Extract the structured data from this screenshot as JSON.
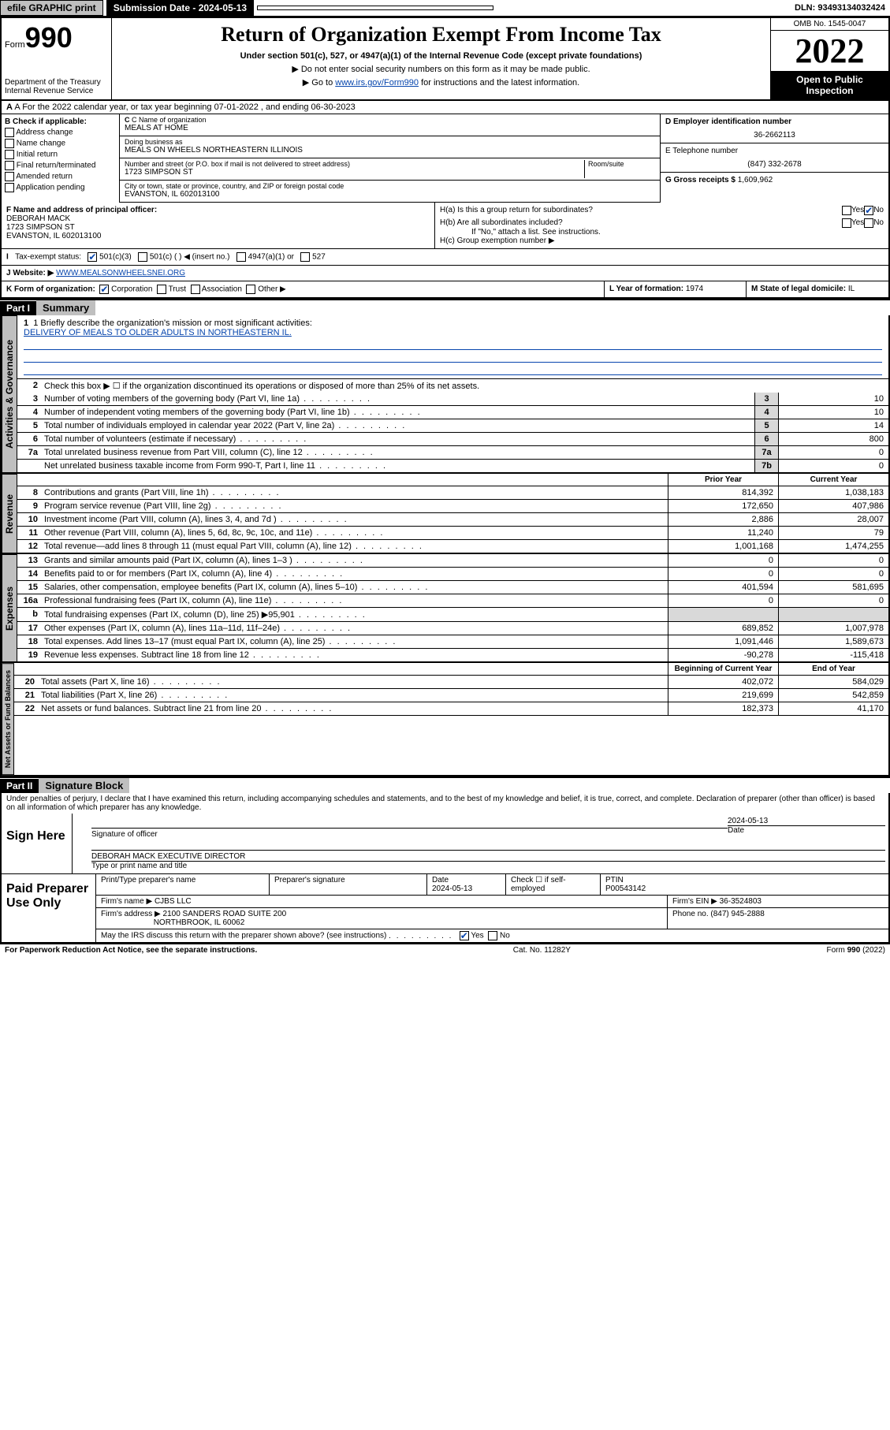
{
  "topbar": {
    "efile": "efile GRAPHIC print",
    "subdate_label": "Submission Date - 2024-05-13",
    "dln": "DLN: 93493134032424"
  },
  "header": {
    "form": "Form",
    "num": "990",
    "dept": "Department of the Treasury",
    "irs": "Internal Revenue Service",
    "title": "Return of Organization Exempt From Income Tax",
    "sub": "Under section 501(c), 527, or 4947(a)(1) of the Internal Revenue Code (except private foundations)",
    "note1": "▶ Do not enter social security numbers on this form as it may be made public.",
    "note2": "▶ Go to www.irs.gov/Form990 for instructions and the latest information.",
    "omb": "OMB No. 1545-0047",
    "year": "2022",
    "inspect": "Open to Public Inspection"
  },
  "rowA": "A For the 2022 calendar year, or tax year beginning 07-01-2022   , and ending 06-30-2023",
  "colB": {
    "head": "B Check if applicable:",
    "opts": [
      "Address change",
      "Name change",
      "Initial return",
      "Final return/terminated",
      "Amended return",
      "Application pending"
    ]
  },
  "colC": {
    "name_label": "C Name of organization",
    "name": "MEALS AT HOME",
    "dba_label": "Doing business as",
    "dba": "MEALS ON WHEELS NORTHEASTERN ILLINOIS",
    "addr_label": "Number and street (or P.O. box if mail is not delivered to street address)",
    "room_label": "Room/suite",
    "addr": "1723 SIMPSON ST",
    "city_label": "City or town, state or province, country, and ZIP or foreign postal code",
    "city": "EVANSTON, IL  602013100"
  },
  "colDE": {
    "d_label": "D Employer identification number",
    "ein": "36-2662113",
    "e_label": "E Telephone number",
    "phone": "(847) 332-2678",
    "g_label": "G Gross receipts $",
    "gross": "1,609,962"
  },
  "rowF": {
    "f_label": "F Name and address of principal officer:",
    "name": "DEBORAH MACK",
    "addr": "1723 SIMPSON ST",
    "city": "EVANSTON, IL  602013100",
    "ha": "H(a)  Is this a group return for subordinates?",
    "hb": "H(b)  Are all subordinates included?",
    "hb_note": "If \"No,\" attach a list. See instructions.",
    "hc": "H(c)  Group exemption number ▶",
    "yes": "Yes",
    "no": "No"
  },
  "rowI": {
    "label": "Tax-exempt status:",
    "c3": "501(c)(3)",
    "c_insert": "501(c) (   ) ◀ (insert no.)",
    "a1": "4947(a)(1) or",
    "s527": "527"
  },
  "rowJ": {
    "label": "J Website: ▶",
    "url": "WWW.MEALSONWHEELSNEI.ORG"
  },
  "rowK": {
    "label": "K Form of organization:",
    "corp": "Corporation",
    "trust": "Trust",
    "assoc": "Association",
    "other": "Other ▶",
    "l_label": "L Year of formation:",
    "l_val": "1974",
    "m_label": "M State of legal domicile:",
    "m_val": "IL"
  },
  "partI": {
    "part": "Part I",
    "title": "Summary"
  },
  "mission": {
    "label": "1  Briefly describe the organization's mission or most significant activities:",
    "text": "DELIVERY OF MEALS TO OLDER ADULTS IN NORTHEASTERN IL."
  },
  "line2": "Check this box ▶ ☐  if the organization discontinued its operations or disposed of more than 25% of its net assets.",
  "gov_lines": [
    {
      "n": "3",
      "d": "Number of voting members of the governing body (Part VI, line 1a)",
      "b": "3",
      "v": "10"
    },
    {
      "n": "4",
      "d": "Number of independent voting members of the governing body (Part VI, line 1b)",
      "b": "4",
      "v": "10"
    },
    {
      "n": "5",
      "d": "Total number of individuals employed in calendar year 2022 (Part V, line 2a)",
      "b": "5",
      "v": "14"
    },
    {
      "n": "6",
      "d": "Total number of volunteers (estimate if necessary)",
      "b": "6",
      "v": "800"
    },
    {
      "n": "7a",
      "d": "Total unrelated business revenue from Part VIII, column (C), line 12",
      "b": "7a",
      "v": "0"
    },
    {
      "n": "",
      "d": "Net unrelated business taxable income from Form 990-T, Part I, line 11",
      "b": "7b",
      "v": "0"
    }
  ],
  "col_hdr": {
    "py": "Prior Year",
    "cy": "Current Year"
  },
  "rev_lines": [
    {
      "n": "8",
      "d": "Contributions and grants (Part VIII, line 1h)",
      "py": "814,392",
      "cy": "1,038,183"
    },
    {
      "n": "9",
      "d": "Program service revenue (Part VIII, line 2g)",
      "py": "172,650",
      "cy": "407,986"
    },
    {
      "n": "10",
      "d": "Investment income (Part VIII, column (A), lines 3, 4, and 7d )",
      "py": "2,886",
      "cy": "28,007"
    },
    {
      "n": "11",
      "d": "Other revenue (Part VIII, column (A), lines 5, 6d, 8c, 9c, 10c, and 11e)",
      "py": "11,240",
      "cy": "79"
    },
    {
      "n": "12",
      "d": "Total revenue—add lines 8 through 11 (must equal Part VIII, column (A), line 12)",
      "py": "1,001,168",
      "cy": "1,474,255"
    }
  ],
  "exp_lines": [
    {
      "n": "13",
      "d": "Grants and similar amounts paid (Part IX, column (A), lines 1–3 )",
      "py": "0",
      "cy": "0"
    },
    {
      "n": "14",
      "d": "Benefits paid to or for members (Part IX, column (A), line 4)",
      "py": "0",
      "cy": "0"
    },
    {
      "n": "15",
      "d": "Salaries, other compensation, employee benefits (Part IX, column (A), lines 5–10)",
      "py": "401,594",
      "cy": "581,695"
    },
    {
      "n": "16a",
      "d": "Professional fundraising fees (Part IX, column (A), line 11e)",
      "py": "0",
      "cy": "0"
    },
    {
      "n": "b",
      "d": "Total fundraising expenses (Part IX, column (D), line 25) ▶95,901",
      "py": "",
      "cy": ""
    },
    {
      "n": "17",
      "d": "Other expenses (Part IX, column (A), lines 11a–11d, 11f–24e)",
      "py": "689,852",
      "cy": "1,007,978"
    },
    {
      "n": "18",
      "d": "Total expenses. Add lines 13–17 (must equal Part IX, column (A), line 25)",
      "py": "1,091,446",
      "cy": "1,589,673"
    },
    {
      "n": "19",
      "d": "Revenue less expenses. Subtract line 18 from line 12",
      "py": "-90,278",
      "cy": "-115,418"
    }
  ],
  "na_hdr": {
    "b": "Beginning of Current Year",
    "e": "End of Year"
  },
  "na_lines": [
    {
      "n": "20",
      "d": "Total assets (Part X, line 16)",
      "py": "402,072",
      "cy": "584,029"
    },
    {
      "n": "21",
      "d": "Total liabilities (Part X, line 26)",
      "py": "219,699",
      "cy": "542,859"
    },
    {
      "n": "22",
      "d": "Net assets or fund balances. Subtract line 21 from line 20",
      "py": "182,373",
      "cy": "41,170"
    }
  ],
  "partII": {
    "part": "Part II",
    "title": "Signature Block"
  },
  "sig": {
    "decl": "Under penalties of perjury, I declare that I have examined this return, including accompanying schedules and statements, and to the best of my knowledge and belief, it is true, correct, and complete. Declaration of preparer (other than officer) is based on all information of which preparer has any knowledge.",
    "sign_here": "Sign Here",
    "sig_label": "Signature of officer",
    "date_label": "Date",
    "date": "2024-05-13",
    "name": "DEBORAH MACK  EXECUTIVE DIRECTOR",
    "name_label": "Type or print name and title"
  },
  "prep": {
    "title": "Paid Preparer Use Only",
    "pt_name_label": "Print/Type preparer's name",
    "sig_label": "Preparer's signature",
    "date_label": "Date",
    "date": "2024-05-13",
    "check_label": "Check ☐ if self-employed",
    "ptin_label": "PTIN",
    "ptin": "P00543142",
    "firm_name_label": "Firm's name   ▶",
    "firm_name": "CJBS LLC",
    "firm_ein_label": "Firm's EIN ▶",
    "firm_ein": "36-3524803",
    "firm_addr_label": "Firm's address ▶",
    "firm_addr": "2100 SANDERS ROAD SUITE 200",
    "firm_city": "NORTHBROOK, IL  60062",
    "phone_label": "Phone no.",
    "phone": "(847) 945-2888",
    "discuss": "May the IRS discuss this return with the preparer shown above? (see instructions)"
  },
  "footer": {
    "pra": "For Paperwork Reduction Act Notice, see the separate instructions.",
    "cat": "Cat. No. 11282Y",
    "form": "Form 990 (2022)"
  },
  "vtabs": {
    "gov": "Activities & Governance",
    "rev": "Revenue",
    "exp": "Expenses",
    "na": "Net Assets or Fund Balances"
  }
}
